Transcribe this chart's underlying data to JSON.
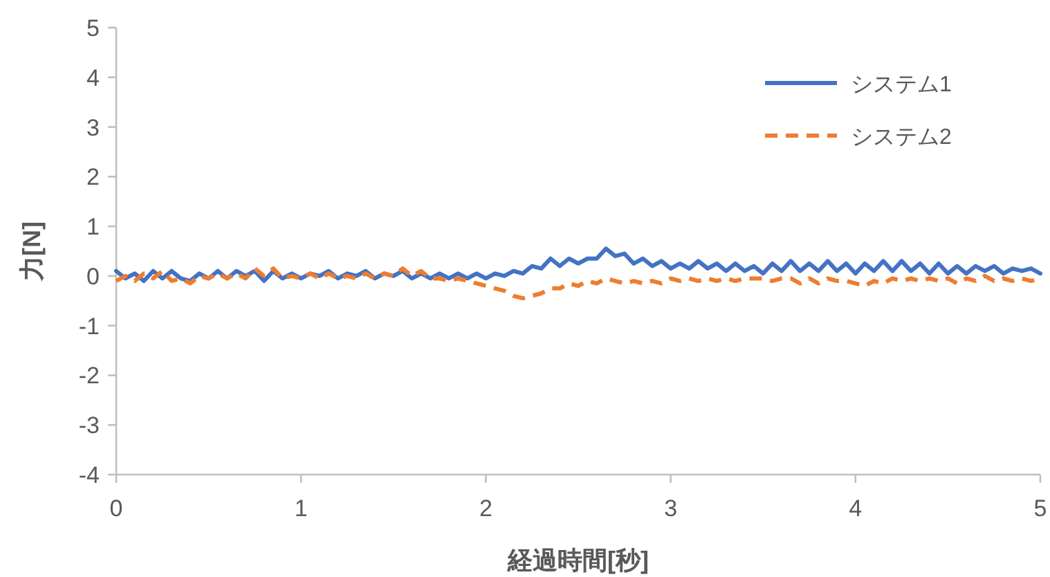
{
  "chart_data": {
    "type": "line",
    "xlabel": "経過時間[秒]",
    "ylabel": "力[N]",
    "x": [
      0,
      0.05,
      0.1,
      0.15,
      0.2,
      0.25,
      0.3,
      0.35,
      0.4,
      0.45,
      0.5,
      0.55,
      0.6,
      0.65,
      0.7,
      0.75,
      0.8,
      0.85,
      0.9,
      0.95,
      1,
      1.05,
      1.1,
      1.15,
      1.2,
      1.25,
      1.3,
      1.35,
      1.4,
      1.45,
      1.5,
      1.55,
      1.6,
      1.65,
      1.7,
      1.75,
      1.8,
      1.85,
      1.9,
      1.95,
      2,
      2.05,
      2.1,
      2.15,
      2.2,
      2.25,
      2.3,
      2.35,
      2.4,
      2.45,
      2.5,
      2.55,
      2.6,
      2.65,
      2.7,
      2.75,
      2.8,
      2.85,
      2.9,
      2.95,
      3,
      3.05,
      3.1,
      3.15,
      3.2,
      3.25,
      3.3,
      3.35,
      3.4,
      3.45,
      3.5,
      3.55,
      3.6,
      3.65,
      3.7,
      3.75,
      3.8,
      3.85,
      3.9,
      3.95,
      4,
      4.05,
      4.1,
      4.15,
      4.2,
      4.25,
      4.3,
      4.35,
      4.4,
      4.45,
      4.5,
      4.55,
      4.6,
      4.65,
      4.7,
      4.75,
      4.8,
      4.85,
      4.9,
      4.95,
      5
    ],
    "series": [
      {
        "name": "システム1",
        "color": "#4472c4",
        "line_style": "solid",
        "values": [
          0.1,
          -0.05,
          0.05,
          -0.1,
          0.1,
          -0.05,
          0.1,
          -0.05,
          -0.1,
          0.05,
          -0.05,
          0.1,
          -0.05,
          0.1,
          0,
          0.1,
          -0.1,
          0.1,
          -0.05,
          0.05,
          -0.05,
          0.05,
          0,
          0.1,
          -0.05,
          0.05,
          0,
          0.1,
          -0.05,
          0.05,
          0,
          0.1,
          -0.05,
          0.05,
          -0.05,
          0.05,
          -0.05,
          0.05,
          -0.05,
          0.05,
          -0.05,
          0.05,
          0,
          0.1,
          0.05,
          0.2,
          0.15,
          0.35,
          0.2,
          0.35,
          0.25,
          0.35,
          0.35,
          0.55,
          0.4,
          0.45,
          0.25,
          0.35,
          0.2,
          0.3,
          0.15,
          0.25,
          0.15,
          0.3,
          0.15,
          0.25,
          0.1,
          0.25,
          0.1,
          0.2,
          0.05,
          0.25,
          0.1,
          0.3,
          0.1,
          0.25,
          0.1,
          0.3,
          0.1,
          0.25,
          0.05,
          0.25,
          0.1,
          0.3,
          0.1,
          0.3,
          0.1,
          0.25,
          0.05,
          0.25,
          0.05,
          0.2,
          0.05,
          0.2,
          0.1,
          0.2,
          0.05,
          0.15,
          0.1,
          0.15,
          0.05
        ]
      },
      {
        "name": "システム2",
        "color": "#ed7d31",
        "line_style": "dashed",
        "values": [
          -0.1,
          0,
          -0.1,
          0.05,
          -0.05,
          0.1,
          -0.1,
          -0.05,
          -0.15,
          0,
          -0.05,
          0.05,
          -0.05,
          0.05,
          -0.05,
          0.15,
          0,
          0.15,
          -0.05,
          0,
          -0.05,
          0.05,
          -0.05,
          0.05,
          -0.05,
          0,
          -0.05,
          0.05,
          -0.05,
          0.05,
          0,
          0.15,
          0,
          0.1,
          -0.05,
          -0.05,
          -0.1,
          -0.05,
          -0.1,
          -0.15,
          -0.2,
          -0.25,
          -0.3,
          -0.4,
          -0.45,
          -0.4,
          -0.35,
          -0.25,
          -0.25,
          -0.15,
          -0.2,
          -0.1,
          -0.15,
          -0.05,
          -0.1,
          -0.15,
          -0.1,
          -0.15,
          -0.1,
          -0.15,
          -0.05,
          -0.1,
          -0.05,
          -0.1,
          -0.05,
          -0.1,
          -0.05,
          -0.1,
          -0.05,
          -0.05,
          -0.05,
          -0.1,
          -0.05,
          -0.05,
          -0.15,
          -0.05,
          -0.15,
          -0.05,
          -0.1,
          -0.1,
          -0.15,
          -0.2,
          -0.1,
          -0.15,
          -0.05,
          -0.1,
          -0.05,
          -0.1,
          -0.05,
          -0.1,
          -0.05,
          -0.15,
          -0.05,
          -0.1,
          0,
          -0.1,
          -0.05,
          -0.1,
          -0.05,
          -0.1,
          -0.05
        ]
      }
    ],
    "xlim": [
      0,
      5
    ],
    "xticks": [
      0,
      1,
      2,
      3,
      4,
      5
    ],
    "ylim": [
      -4,
      5
    ],
    "yticks": [
      -4,
      -3,
      -2,
      -1,
      0,
      1,
      2,
      3,
      4,
      5
    ],
    "grid": false,
    "legend": "top right",
    "marker": "none"
  }
}
